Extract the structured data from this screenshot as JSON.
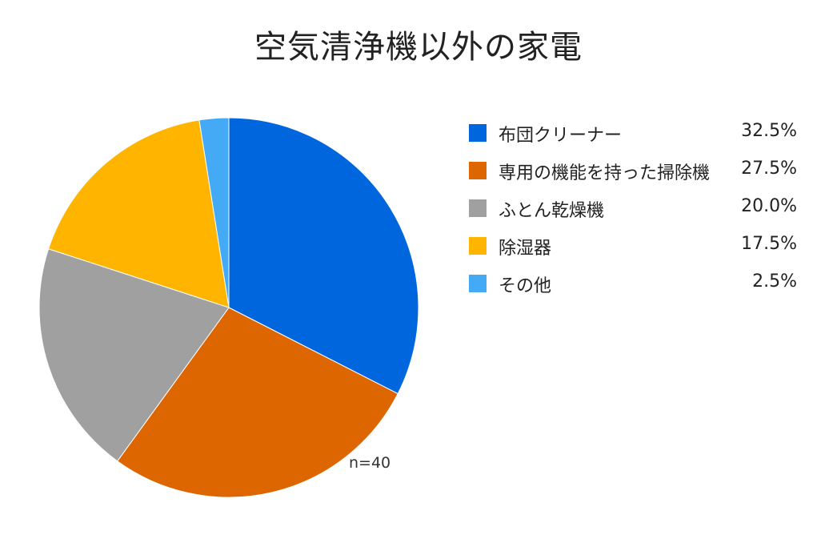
{
  "chart_data": {
    "type": "pie",
    "title": "空気清浄機以外の家電",
    "slices": [
      {
        "label": "布団クリーナー",
        "value": 32.5,
        "display": "32.5%",
        "color": "#0066dd"
      },
      {
        "label": "専用の機能を持った掃除機",
        "value": 27.5,
        "display": "27.5%",
        "color": "#dd6600"
      },
      {
        "label": "ふとん乾燥機",
        "value": 20.0,
        "display": "20.0%",
        "color": "#a0a0a0"
      },
      {
        "label": "除湿器",
        "value": 17.5,
        "display": "17.5%",
        "color": "#ffb400"
      },
      {
        "label": "その他",
        "value": 2.5,
        "display": "2.5%",
        "color": "#44aaf5"
      }
    ],
    "note": "n=40",
    "legend_position": "right",
    "start": "12 o'clock",
    "direction": "clockwise"
  }
}
